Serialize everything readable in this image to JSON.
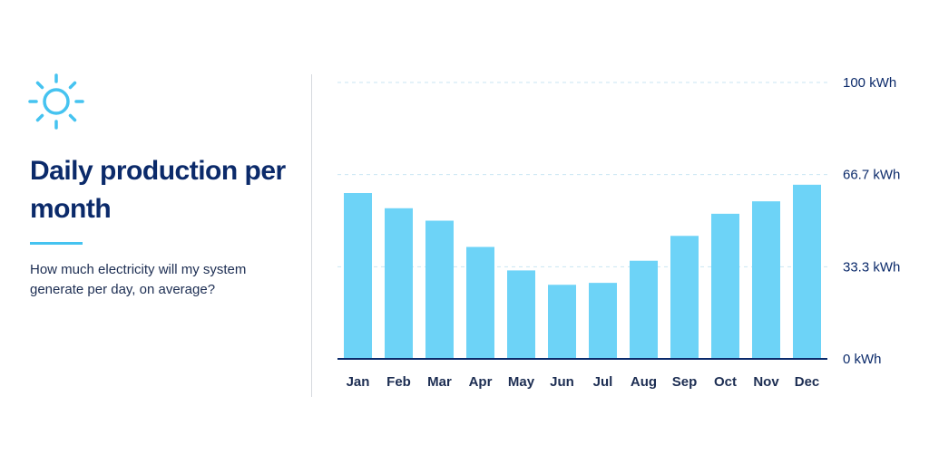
{
  "header": {
    "title": "Daily production per month",
    "subtitle": "How much electricity will my system generate per day, on average?",
    "icon": "sun-icon"
  },
  "colors": {
    "accent": "#45c3f0",
    "bar": "#6dd3f7",
    "title": "#0b2a6a",
    "axis": "#0b2a6a"
  },
  "chart_data": {
    "type": "bar",
    "title": "",
    "xlabel": "",
    "ylabel": "",
    "categories": [
      "Jan",
      "Feb",
      "Mar",
      "Apr",
      "May",
      "Jun",
      "Jul",
      "Aug",
      "Sep",
      "Oct",
      "Nov",
      "Dec"
    ],
    "values": [
      60,
      54.5,
      50,
      40.5,
      32,
      26.8,
      27.5,
      35.5,
      44.5,
      52.5,
      57,
      63
    ],
    "ylim": [
      0,
      100
    ],
    "yticks": [
      0,
      33.3,
      66.7,
      100
    ],
    "ytick_labels": [
      "0 kWh",
      "33.3 kWh",
      "66.7 kWh",
      "100 kWh"
    ],
    "grid": true,
    "grid_style": "dashed",
    "legend": "none"
  }
}
